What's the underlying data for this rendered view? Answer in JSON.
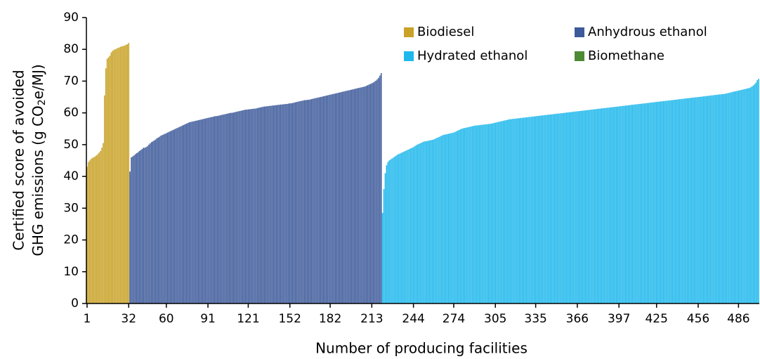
{
  "chart_data": {
    "type": "bar",
    "xlabel": "Number of producing facilities",
    "ylabel": [
      "Certified score of avoided",
      "GHG emissions (g CO",
      "2",
      "e/MJ)"
    ],
    "xlim": [
      0.5,
      501.5
    ],
    "xticks": [
      1,
      32,
      60,
      91,
      121,
      152,
      182,
      213,
      244,
      274,
      305,
      335,
      366,
      397,
      425,
      456,
      486
    ],
    "ylim": [
      0,
      90
    ],
    "yticks": [
      0,
      10,
      20,
      30,
      40,
      50,
      60,
      70,
      80,
      90
    ],
    "legend": "upper right",
    "series": [
      {
        "name": "Biodiesel",
        "color": "#c9a227",
        "values": [
          43,
          44.5,
          45,
          45.5,
          45.8,
          46,
          46.3,
          46.6,
          47,
          47.5,
          48,
          49,
          50.5,
          65.5,
          74,
          77,
          77.5,
          78,
          79,
          79.5,
          79.8,
          80,
          80.2,
          80.4,
          80.6,
          80.8,
          81,
          81,
          81.2,
          81.4,
          81.6,
          82
        ]
      },
      {
        "name": "Anhydrous ethanol",
        "color": "#3d5a9a",
        "values": [
          41.5,
          46,
          46.3,
          46.6,
          47,
          47.3,
          47.6,
          48,
          48.3,
          48.6,
          49,
          49,
          49.2,
          49.5,
          50,
          50.4,
          50.8,
          51,
          51.3,
          51.6,
          52,
          52.2,
          52.5,
          52.8,
          53,
          53.2,
          53.4,
          53.6,
          53.8,
          54,
          54.2,
          54.4,
          54.6,
          54.8,
          55,
          55.2,
          55.4,
          55.6,
          55.8,
          56,
          56.2,
          56.4,
          56.6,
          56.8,
          57,
          57.1,
          57.2,
          57.3,
          57.4,
          57.5,
          57.6,
          57.7,
          57.8,
          57.9,
          58,
          58.1,
          58.2,
          58.3,
          58.4,
          58.5,
          58.6,
          58.7,
          58.8,
          58.9,
          59,
          59,
          59.1,
          59.2,
          59.3,
          59.4,
          59.5,
          59.6,
          59.7,
          59.8,
          59.9,
          60,
          60,
          60.1,
          60.2,
          60.3,
          60.4,
          60.5,
          60.6,
          60.7,
          60.8,
          60.9,
          61,
          61,
          61.1,
          61.1,
          61.2,
          61.2,
          61.3,
          61.3,
          61.4,
          61.5,
          61.6,
          61.7,
          61.8,
          61.9,
          62,
          62,
          62.1,
          62.1,
          62.2,
          62.2,
          62.3,
          62.3,
          62.4,
          62.4,
          62.5,
          62.5,
          62.6,
          62.6,
          62.7,
          62.7,
          62.8,
          62.8,
          62.9,
          63,
          63,
          63.1,
          63.2,
          63.3,
          63.4,
          63.5,
          63.6,
          63.7,
          63.8,
          63.9,
          64,
          64,
          64.1,
          64.1,
          64.2,
          64.3,
          64.4,
          64.5,
          64.6,
          64.7,
          64.8,
          64.9,
          65,
          65.1,
          65.2,
          65.3,
          65.4,
          65.5,
          65.6,
          65.7,
          65.8,
          65.9,
          66,
          66.1,
          66.2,
          66.3,
          66.4,
          66.5,
          66.6,
          66.7,
          66.8,
          66.9,
          67,
          67.1,
          67.2,
          67.3,
          67.4,
          67.5,
          67.6,
          67.7,
          67.8,
          67.9,
          68,
          68.1,
          68.2,
          68.3,
          68.5,
          68.7,
          68.9,
          69.1,
          69.3,
          69.5,
          69.8,
          70.1,
          70.5,
          71,
          71.7,
          72.5
        ]
      },
      {
        "name": "Hydrated ethanol",
        "color": "#1fb8ec",
        "values": [
          28.5,
          36,
          41,
          43.5,
          44.5,
          45,
          45.3,
          45.6,
          45.9,
          46.2,
          46.5,
          46.8,
          47,
          47.2,
          47.4,
          47.6,
          47.8,
          48,
          48.2,
          48.4,
          48.6,
          48.8,
          49,
          49.2,
          49.5,
          49.8,
          50,
          50.2,
          50.4,
          50.6,
          50.8,
          51,
          51,
          51.1,
          51.2,
          51.3,
          51.4,
          51.5,
          51.6,
          51.8,
          52,
          52.2,
          52.4,
          52.6,
          52.8,
          53,
          53.1,
          53.2,
          53.3,
          53.4,
          53.5,
          53.6,
          53.7,
          53.8,
          54,
          54.2,
          54.4,
          54.6,
          54.8,
          55,
          55.1,
          55.2,
          55.3,
          55.4,
          55.5,
          55.6,
          55.7,
          55.8,
          55.9,
          56,
          56,
          56.1,
          56.1,
          56.2,
          56.2,
          56.3,
          56.3,
          56.4,
          56.4,
          56.5,
          56.5,
          56.6,
          56.7,
          56.8,
          56.9,
          57,
          57.1,
          57.2,
          57.3,
          57.4,
          57.5,
          57.6,
          57.7,
          57.8,
          57.9,
          58,
          58,
          58.1,
          58.1,
          58.2,
          58.2,
          58.3,
          58.3,
          58.4,
          58.4,
          58.5,
          58.5,
          58.6,
          58.6,
          58.7,
          58.7,
          58.8,
          58.8,
          58.9,
          58.9,
          59,
          59,
          59.1,
          59.1,
          59.2,
          59.2,
          59.3,
          59.3,
          59.4,
          59.4,
          59.5,
          59.5,
          59.6,
          59.6,
          59.7,
          59.7,
          59.8,
          59.8,
          59.9,
          59.9,
          60,
          60,
          60.1,
          60.1,
          60.2,
          60.2,
          60.3,
          60.3,
          60.4,
          60.4,
          60.5,
          60.5,
          60.6,
          60.6,
          60.7,
          60.7,
          60.8,
          60.8,
          60.9,
          60.9,
          61,
          61,
          61.1,
          61.1,
          61.2,
          61.2,
          61.3,
          61.3,
          61.4,
          61.4,
          61.5,
          61.5,
          61.6,
          61.6,
          61.7,
          61.7,
          61.8,
          61.8,
          61.9,
          61.9,
          62,
          62,
          62.1,
          62.1,
          62.2,
          62.2,
          62.3,
          62.3,
          62.4,
          62.4,
          62.5,
          62.5,
          62.6,
          62.6,
          62.7,
          62.7,
          62.8,
          62.8,
          62.9,
          62.9,
          63,
          63,
          63.1,
          63.1,
          63.2,
          63.2,
          63.3,
          63.3,
          63.4,
          63.4,
          63.5,
          63.5,
          63.6,
          63.6,
          63.7,
          63.7,
          63.8,
          63.8,
          63.9,
          63.9,
          64,
          64,
          64.1,
          64.1,
          64.2,
          64.2,
          64.3,
          64.3,
          64.4,
          64.4,
          64.5,
          64.5,
          64.6,
          64.6,
          64.7,
          64.7,
          64.8,
          64.8,
          64.9,
          64.9,
          65,
          65,
          65.1,
          65.1,
          65.2,
          65.2,
          65.3,
          65.3,
          65.4,
          65.4,
          65.5,
          65.5,
          65.6,
          65.6,
          65.7,
          65.7,
          65.8,
          65.8,
          65.9,
          65.9,
          66,
          66.1,
          66.2,
          66.3,
          66.4,
          66.5,
          66.6,
          66.7,
          66.8,
          66.9,
          67,
          67.1,
          67.2,
          67.3,
          67.4,
          67.5,
          67.6,
          67.7,
          67.8,
          68,
          68.3,
          68.6,
          69,
          69.5,
          70.3,
          70.7
        ]
      },
      {
        "name": "Biomethane",
        "color": "#4e8a35",
        "values": []
      }
    ]
  }
}
